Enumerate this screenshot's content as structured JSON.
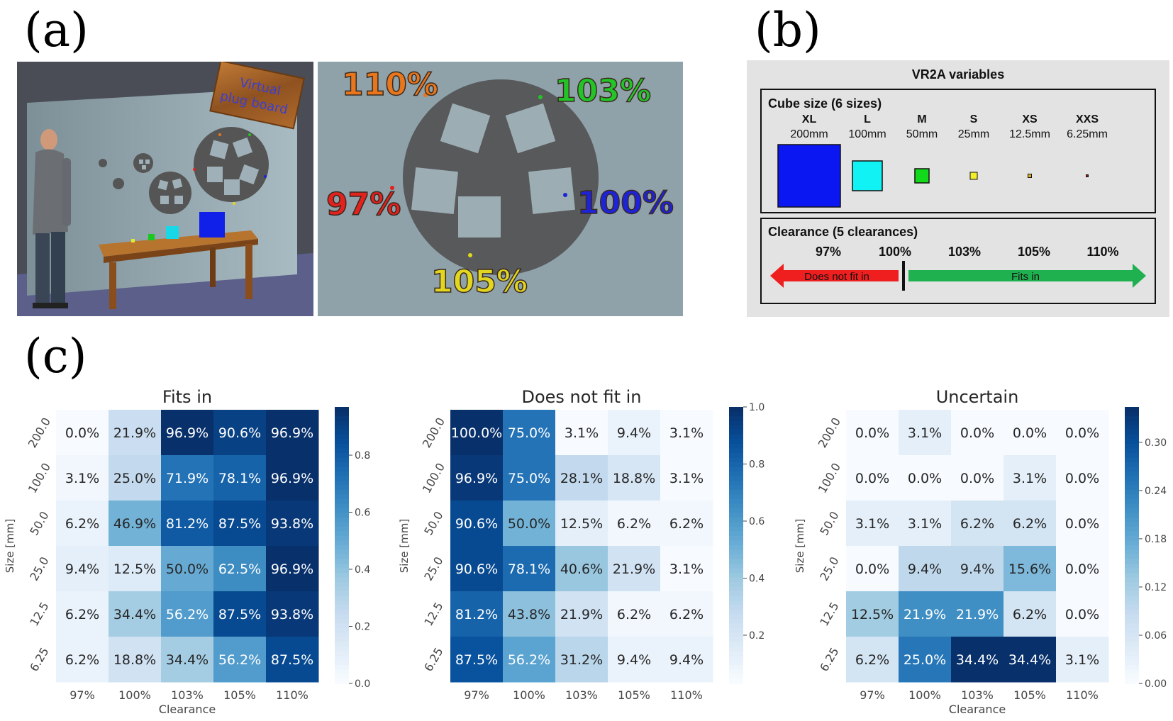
{
  "panels": {
    "a": "(a)",
    "b": "(b)",
    "c": "(c)"
  },
  "scene": {
    "sign_lines": [
      "Virtual",
      "plug board"
    ],
    "callouts": [
      {
        "label": "110%",
        "color": "#e8761c"
      },
      {
        "label": "103%",
        "color": "#22c427"
      },
      {
        "label": "97%",
        "color": "#e3211d"
      },
      {
        "label": "100%",
        "color": "#1d23d6"
      },
      {
        "label": "105%",
        "color": "#e2d61f"
      }
    ]
  },
  "vr2a": {
    "title": "VR2A variables",
    "cube_size_title": "Cube size (6 sizes)",
    "sizes": [
      {
        "code": "XL",
        "mm": "200mm",
        "color": "#0b17f2"
      },
      {
        "code": "L",
        "mm": "100mm",
        "color": "#10f2f4"
      },
      {
        "code": "M",
        "mm": "50mm",
        "color": "#12d91a"
      },
      {
        "code": "S",
        "mm": "25mm",
        "color": "#f2ef2a"
      },
      {
        "code": "XS",
        "mm": "12.5mm",
        "color": "#d9b020"
      },
      {
        "code": "XXS",
        "mm": "6.25mm",
        "color": "#8b1c18"
      }
    ],
    "clearance_title": "Clearance (5 clearances)",
    "clearances": [
      "97%",
      "100%",
      "103%",
      "105%",
      "110%"
    ],
    "does_not_fit": "Does not fit in",
    "fits": "Fits in",
    "colors": {
      "red_arrow": "#ef1f1f",
      "green_arrow": "#1fb04f"
    }
  },
  "chart_data": [
    {
      "type": "heatmap",
      "title": "Fits in",
      "xlabel": "Clearance",
      "ylabel": "Size [mm]",
      "x": [
        "97%",
        "100%",
        "103%",
        "105%",
        "110%"
      ],
      "y": [
        "200.0",
        "100.0",
        "50.0",
        "25.0",
        "12.5",
        "6.25"
      ],
      "values": [
        [
          0.0,
          0.219,
          0.969,
          0.906,
          0.969
        ],
        [
          0.031,
          0.25,
          0.719,
          0.781,
          0.969
        ],
        [
          0.062,
          0.469,
          0.812,
          0.875,
          0.938
        ],
        [
          0.094,
          0.125,
          0.5,
          0.625,
          0.969
        ],
        [
          0.062,
          0.344,
          0.562,
          0.875,
          0.938
        ],
        [
          0.062,
          0.188,
          0.344,
          0.562,
          0.875
        ]
      ],
      "cell_labels": [
        [
          "0.0%",
          "21.9%",
          "96.9%",
          "90.6%",
          "96.9%"
        ],
        [
          "3.1%",
          "25.0%",
          "71.9%",
          "78.1%",
          "96.9%"
        ],
        [
          "6.2%",
          "46.9%",
          "81.2%",
          "87.5%",
          "93.8%"
        ],
        [
          "9.4%",
          "12.5%",
          "50.0%",
          "62.5%",
          "96.9%"
        ],
        [
          "6.2%",
          "34.4%",
          "56.2%",
          "87.5%",
          "93.8%"
        ],
        [
          "6.2%",
          "18.8%",
          "34.4%",
          "56.2%",
          "87.5%"
        ]
      ],
      "vmin": 0.0,
      "vmax": 0.969,
      "colorbar_ticks": [
        "0.0",
        "0.2",
        "0.4",
        "0.6",
        "0.8"
      ],
      "colorbar_tick_values": [
        0.0,
        0.2,
        0.4,
        0.6,
        0.8
      ],
      "colormap": "Blues"
    },
    {
      "type": "heatmap",
      "title": "Does not fit in",
      "xlabel": "",
      "ylabel": "Size [mm]",
      "x": [
        "97%",
        "100%",
        "103%",
        "105%",
        "110%"
      ],
      "y": [
        "200.0",
        "100.0",
        "50.0",
        "25.0",
        "12.5",
        "6.25"
      ],
      "values": [
        [
          1.0,
          0.75,
          0.031,
          0.094,
          0.031
        ],
        [
          0.969,
          0.75,
          0.281,
          0.188,
          0.031
        ],
        [
          0.906,
          0.5,
          0.125,
          0.062,
          0.062
        ],
        [
          0.906,
          0.781,
          0.406,
          0.219,
          0.031
        ],
        [
          0.812,
          0.438,
          0.219,
          0.062,
          0.062
        ],
        [
          0.875,
          0.562,
          0.312,
          0.094,
          0.094
        ]
      ],
      "cell_labels": [
        [
          "100.0%",
          "75.0%",
          "3.1%",
          "9.4%",
          "3.1%"
        ],
        [
          "96.9%",
          "75.0%",
          "28.1%",
          "18.8%",
          "3.1%"
        ],
        [
          "90.6%",
          "50.0%",
          "12.5%",
          "6.2%",
          "6.2%"
        ],
        [
          "90.6%",
          "78.1%",
          "40.6%",
          "21.9%",
          "3.1%"
        ],
        [
          "81.2%",
          "43.8%",
          "21.9%",
          "6.2%",
          "6.2%"
        ],
        [
          "87.5%",
          "56.2%",
          "31.2%",
          "9.4%",
          "9.4%"
        ]
      ],
      "vmin": 0.031,
      "vmax": 1.0,
      "colorbar_ticks": [
        "0.2",
        "0.4",
        "0.6",
        "0.8",
        "1.0"
      ],
      "colorbar_tick_values": [
        0.2,
        0.4,
        0.6,
        0.8,
        1.0
      ],
      "colormap": "Blues"
    },
    {
      "type": "heatmap",
      "title": "Uncertain",
      "xlabel": "Clearance",
      "ylabel": "Size [mm]",
      "x": [
        "97%",
        "100%",
        "103%",
        "105%",
        "110%"
      ],
      "y": [
        "200.0",
        "100.0",
        "50.0",
        "25.0",
        "12.5",
        "6.25"
      ],
      "values": [
        [
          0.0,
          0.031,
          0.0,
          0.0,
          0.0
        ],
        [
          0.0,
          0.0,
          0.0,
          0.031,
          0.0
        ],
        [
          0.031,
          0.031,
          0.062,
          0.062,
          0.0
        ],
        [
          0.0,
          0.094,
          0.094,
          0.156,
          0.0
        ],
        [
          0.125,
          0.219,
          0.219,
          0.062,
          0.0
        ],
        [
          0.062,
          0.25,
          0.344,
          0.344,
          0.031
        ]
      ],
      "cell_labels": [
        [
          "0.0%",
          "3.1%",
          "0.0%",
          "0.0%",
          "0.0%"
        ],
        [
          "0.0%",
          "0.0%",
          "0.0%",
          "3.1%",
          "0.0%"
        ],
        [
          "3.1%",
          "3.1%",
          "6.2%",
          "6.2%",
          "0.0%"
        ],
        [
          "0.0%",
          "9.4%",
          "9.4%",
          "15.6%",
          "0.0%"
        ],
        [
          "12.5%",
          "21.9%",
          "21.9%",
          "6.2%",
          "0.0%"
        ],
        [
          "6.2%",
          "25.0%",
          "34.4%",
          "34.4%",
          "3.1%"
        ]
      ],
      "vmin": 0.0,
      "vmax": 0.344,
      "colorbar_ticks": [
        "0.00",
        "0.06",
        "0.12",
        "0.18",
        "0.24",
        "0.30"
      ],
      "colorbar_tick_values": [
        0.0,
        0.06,
        0.12,
        0.18,
        0.24,
        0.3
      ],
      "colormap": "Blues"
    }
  ]
}
